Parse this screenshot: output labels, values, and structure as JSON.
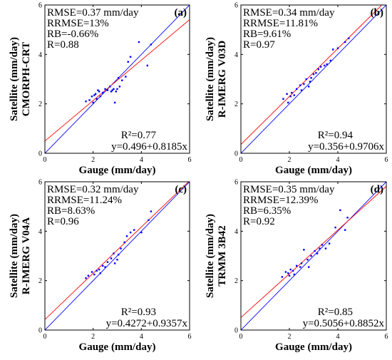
{
  "chart_data": [
    {
      "type": "scatter",
      "panel_label": "(a)",
      "ylabel": [
        "Satellite (mm/day)",
        "CMORPH-CRT"
      ],
      "xlabel": "Gauge (mm/day)",
      "xlim": [
        0,
        6
      ],
      "ylim": [
        0,
        6
      ],
      "xticks": [
        0,
        2,
        4,
        6
      ],
      "yticks": [
        0,
        2,
        4,
        6
      ],
      "stats": [
        "RMSE=0.37 mm/day",
        "RRMSE=13%",
        "RB=-0.66%",
        "R=0.88"
      ],
      "r2_label": "R²=0.77",
      "equation": "y=0.496+0.8185x",
      "fit": {
        "intercept": 0.496,
        "slope": 0.8185
      },
      "x": [
        1.7,
        1.85,
        1.95,
        2.0,
        2.05,
        2.1,
        2.15,
        2.2,
        2.25,
        2.3,
        2.4,
        2.5,
        2.6,
        2.7,
        2.75,
        2.8,
        2.85,
        2.9,
        2.95,
        3.0,
        3.05,
        3.1,
        3.2,
        3.35,
        3.45,
        3.55,
        3.9,
        4.25,
        4.4
      ],
      "y": [
        2.1,
        2.15,
        2.3,
        2.05,
        2.35,
        2.4,
        2.2,
        2.55,
        2.5,
        2.3,
        2.45,
        2.6,
        2.55,
        2.7,
        2.5,
        2.55,
        2.6,
        2.05,
        2.5,
        2.6,
        3.05,
        2.7,
        2.95,
        3.1,
        3.7,
        3.9,
        4.5,
        3.55,
        4.4
      ]
    },
    {
      "type": "scatter",
      "panel_label": "(b)",
      "ylabel": [
        "Satellite (mm/day)",
        "R-IMERG V03D"
      ],
      "xlabel": "Gauge (mm/day)",
      "xlim": [
        0,
        6
      ],
      "ylim": [
        0,
        6
      ],
      "xticks": [
        0,
        2,
        4,
        6
      ],
      "yticks": [
        0,
        2,
        4,
        6
      ],
      "stats": [
        "RMSE=0.34 mm/day",
        "RRMSE=11.81%",
        "RB=9.61%",
        "R=0.97"
      ],
      "r2_label": "R²=0.94",
      "equation": "y=0.356+0.9706x",
      "fit": {
        "intercept": 0.356,
        "slope": 0.9706
      },
      "x": [
        1.75,
        1.9,
        1.95,
        2.05,
        2.1,
        2.2,
        2.3,
        2.45,
        2.5,
        2.6,
        2.7,
        2.8,
        2.85,
        2.9,
        3.0,
        3.1,
        3.2,
        3.3,
        3.45,
        3.55,
        3.7,
        3.8,
        4.0,
        4.3,
        4.45
      ],
      "y": [
        2.2,
        2.4,
        2.05,
        2.3,
        2.45,
        2.35,
        2.6,
        2.75,
        2.55,
        2.8,
        3.0,
        2.7,
        2.9,
        3.05,
        3.2,
        3.25,
        3.4,
        3.5,
        3.55,
        3.6,
        3.75,
        4.2,
        4.25,
        4.5,
        4.65
      ]
    },
    {
      "type": "scatter",
      "panel_label": "(c)",
      "ylabel": [
        "Satellite (mm/day)",
        "R-IMERG V04A"
      ],
      "xlabel": "Gauge (mm/day)",
      "xlim": [
        0,
        6
      ],
      "ylim": [
        0,
        6
      ],
      "xticks": [
        0,
        2,
        4,
        6
      ],
      "yticks": [
        0,
        2,
        4,
        6
      ],
      "stats": [
        "RMSE=0.32 mm/day",
        "RRMSE=11.24%",
        "RB=8.63%",
        "R=0.96"
      ],
      "r2_label": "R²=0.93",
      "equation": "y=0.4272+0.9357x",
      "fit": {
        "intercept": 0.4272,
        "slope": 0.9357
      },
      "x": [
        1.7,
        1.8,
        1.95,
        2.05,
        2.15,
        2.25,
        2.3,
        2.4,
        2.5,
        2.6,
        2.75,
        2.85,
        2.9,
        3.0,
        3.05,
        3.15,
        3.3,
        3.4,
        3.55,
        3.7,
        4.0,
        4.3,
        4.4
      ],
      "y": [
        2.1,
        2.2,
        2.35,
        2.25,
        2.4,
        2.45,
        2.3,
        2.6,
        2.55,
        2.75,
        2.9,
        3.1,
        2.7,
        2.85,
        3.05,
        3.3,
        3.55,
        3.8,
        3.95,
        4.05,
        3.95,
        4.45,
        4.8
      ]
    },
    {
      "type": "scatter",
      "panel_label": "(d)",
      "ylabel": [
        "Satellite (mm/day)",
        "TRMM 3B42"
      ],
      "xlabel": "Gauge (mm/day)",
      "xlim": [
        0,
        6
      ],
      "ylim": [
        0,
        6
      ],
      "xticks": [
        0,
        2,
        4,
        6
      ],
      "yticks": [
        0,
        2,
        4,
        6
      ],
      "stats": [
        "RMSE=0.35 mm/day",
        "RRMSE=12.39%",
        "RB=6.35%",
        "R=0.92"
      ],
      "r2_label": "R²=0.85",
      "equation": "y=0.5056+0.8852x",
      "fit": {
        "intercept": 0.5056,
        "slope": 0.8852
      },
      "x": [
        1.7,
        1.85,
        1.95,
        2.0,
        2.05,
        2.15,
        2.2,
        2.3,
        2.45,
        2.5,
        2.6,
        2.75,
        2.8,
        2.9,
        3.05,
        3.15,
        3.25,
        3.35,
        3.5,
        3.65,
        3.9,
        4.1,
        4.3,
        4.4
      ],
      "y": [
        2.15,
        2.35,
        2.3,
        2.2,
        2.45,
        2.4,
        2.25,
        2.6,
        2.55,
        2.7,
        3.25,
        2.85,
        2.55,
        3.0,
        3.2,
        3.1,
        3.3,
        3.45,
        3.3,
        3.5,
        4.15,
        4.85,
        4.05,
        4.55
      ]
    }
  ]
}
